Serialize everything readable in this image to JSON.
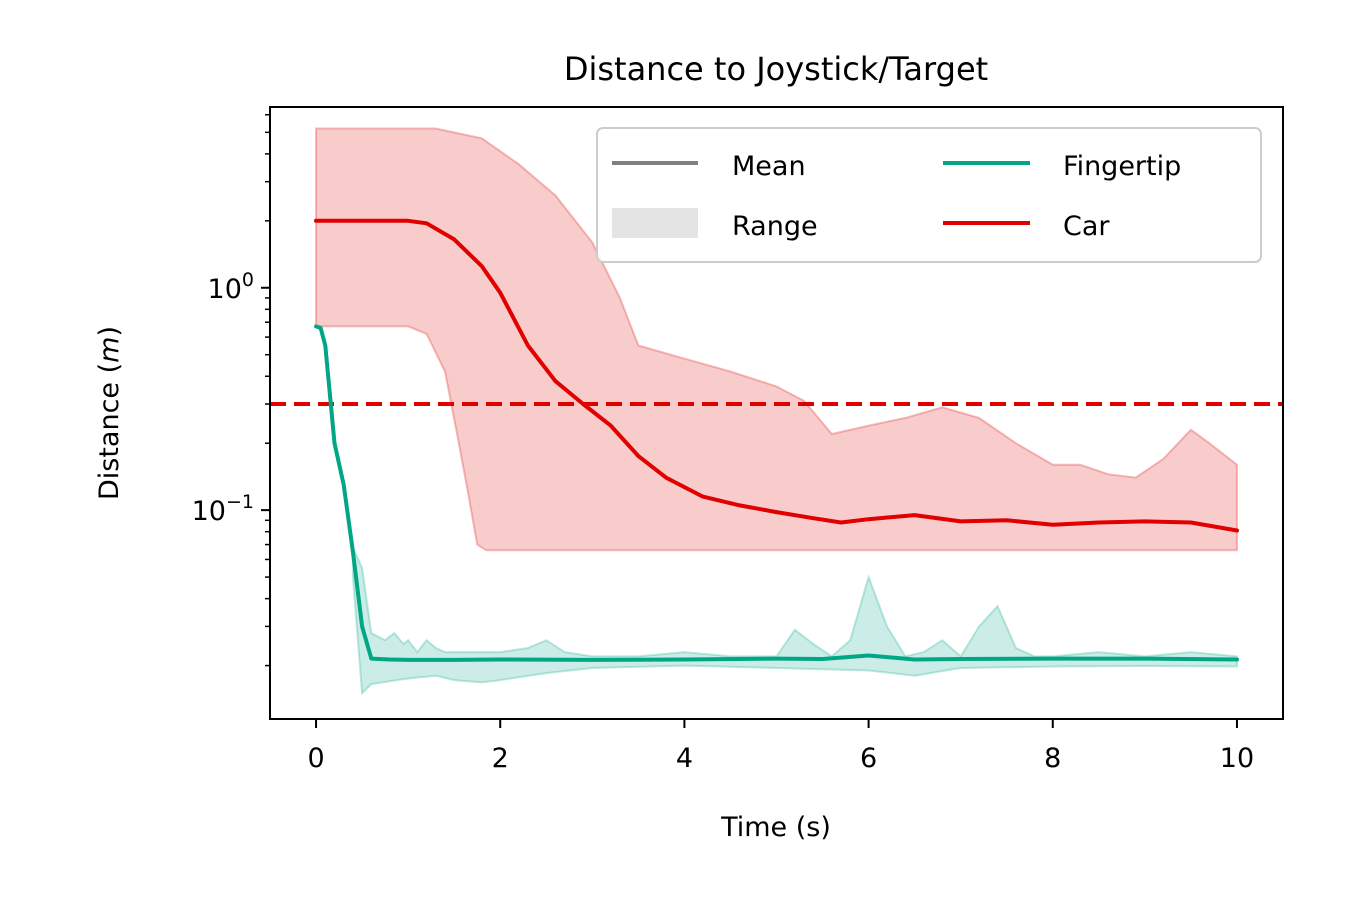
{
  "chart_data": {
    "type": "line",
    "title": "Distance to Joystick/Target",
    "xlabel": "Time (s)",
    "ylabel": "Distance",
    "ylabel_unit": "m",
    "xlim": [
      -0.5,
      10.5
    ],
    "ylim": [
      0.0115,
      6.5
    ],
    "yscale": "log",
    "grid": false,
    "legend_position": "top-right",
    "x_ticks": [
      "0",
      "2",
      "4",
      "6",
      "8",
      "10"
    ],
    "y_ticks": [
      {
        "value": 1,
        "base": "10",
        "exp": "0"
      },
      {
        "value": 0.1,
        "base": "10",
        "exp": "−1"
      }
    ],
    "legend": {
      "entries": [
        "Mean",
        "Range",
        "Fingertip",
        "Car"
      ]
    },
    "threshold": {
      "y": 0.3,
      "color": "#e00000",
      "style": "dashed"
    },
    "series": [
      {
        "name": "Car",
        "color": "#e00000",
        "mean": {
          "x": [
            0,
            0.5,
            1.0,
            1.2,
            1.5,
            1.8,
            2.0,
            2.3,
            2.6,
            2.9,
            3.2,
            3.5,
            3.8,
            4.2,
            4.6,
            5.0,
            5.4,
            5.7,
            6.0,
            6.5,
            7.0,
            7.5,
            8.0,
            8.5,
            9.0,
            9.5,
            10.0
          ],
          "y": [
            2.0,
            2.0,
            2.0,
            1.95,
            1.65,
            1.25,
            0.95,
            0.55,
            0.38,
            0.3,
            0.24,
            0.175,
            0.14,
            0.115,
            0.105,
            0.098,
            0.092,
            0.088,
            0.091,
            0.095,
            0.089,
            0.09,
            0.086,
            0.088,
            0.089,
            0.088,
            0.081
          ]
        },
        "range_upper": {
          "x": [
            0,
            1.0,
            1.3,
            1.8,
            2.2,
            2.6,
            3.0,
            3.3,
            3.5,
            4.0,
            4.5,
            5.0,
            5.3,
            5.6,
            6.0,
            6.4,
            6.8,
            7.2,
            7.6,
            8.0,
            8.3,
            8.6,
            8.9,
            9.2,
            9.5,
            9.7,
            10.0
          ],
          "y": [
            5.2,
            5.2,
            5.2,
            4.7,
            3.6,
            2.6,
            1.6,
            0.9,
            0.55,
            0.48,
            0.42,
            0.36,
            0.31,
            0.22,
            0.24,
            0.26,
            0.29,
            0.26,
            0.2,
            0.16,
            0.16,
            0.145,
            0.14,
            0.17,
            0.23,
            0.2,
            0.16
          ]
        },
        "range_lower": {
          "x": [
            0,
            1.0,
            1.2,
            1.4,
            1.55,
            1.65,
            1.75,
            1.85,
            2.0,
            3.0,
            5.0,
            10.0
          ],
          "y": [
            0.67,
            0.67,
            0.62,
            0.42,
            0.2,
            0.12,
            0.07,
            0.066,
            0.066,
            0.066,
            0.066,
            0.066
          ]
        }
      },
      {
        "name": "Fingertip",
        "color": "#00a685",
        "mean": {
          "x": [
            0,
            0.05,
            0.1,
            0.2,
            0.3,
            0.4,
            0.5,
            0.6,
            0.8,
            1.0,
            1.5,
            2.0,
            3.0,
            4.0,
            5.0,
            5.5,
            6.0,
            6.5,
            7.0,
            8.0,
            9.0,
            10.0
          ],
          "y": [
            0.67,
            0.66,
            0.55,
            0.2,
            0.13,
            0.065,
            0.03,
            0.0215,
            0.0213,
            0.0212,
            0.0212,
            0.0213,
            0.0212,
            0.0213,
            0.0215,
            0.0214,
            0.0222,
            0.0213,
            0.0214,
            0.0215,
            0.0215,
            0.0213
          ]
        },
        "range_upper": {
          "x": [
            0.4,
            0.5,
            0.6,
            0.75,
            0.85,
            0.95,
            1.0,
            1.1,
            1.2,
            1.3,
            1.4,
            1.5,
            1.7,
            2.0,
            2.3,
            2.5,
            2.7,
            3.0,
            3.5,
            4.0,
            4.5,
            5.0,
            5.2,
            5.4,
            5.6,
            5.8,
            6.0,
            6.2,
            6.4,
            6.6,
            6.8,
            7.0,
            7.2,
            7.4,
            7.6,
            7.8,
            8.0,
            8.5,
            9.0,
            9.5,
            10.0
          ],
          "y": [
            0.068,
            0.055,
            0.028,
            0.026,
            0.028,
            0.025,
            0.026,
            0.023,
            0.026,
            0.024,
            0.023,
            0.023,
            0.023,
            0.023,
            0.024,
            0.026,
            0.023,
            0.022,
            0.022,
            0.023,
            0.022,
            0.022,
            0.029,
            0.025,
            0.022,
            0.026,
            0.05,
            0.03,
            0.022,
            0.023,
            0.026,
            0.022,
            0.03,
            0.037,
            0.024,
            0.022,
            0.022,
            0.023,
            0.022,
            0.023,
            0.022
          ]
        },
        "range_lower": {
          "x": [
            0.4,
            0.5,
            0.6,
            0.8,
            1.0,
            1.3,
            1.5,
            1.8,
            2.0,
            2.5,
            3.0,
            4.0,
            5.0,
            6.0,
            6.5,
            7.0,
            8.0,
            9.0,
            10.0
          ],
          "y": [
            0.05,
            0.015,
            0.0165,
            0.017,
            0.0175,
            0.018,
            0.0172,
            0.0168,
            0.0172,
            0.0185,
            0.0195,
            0.02,
            0.0195,
            0.019,
            0.018,
            0.0195,
            0.0198,
            0.0199,
            0.0198
          ]
        }
      }
    ]
  }
}
